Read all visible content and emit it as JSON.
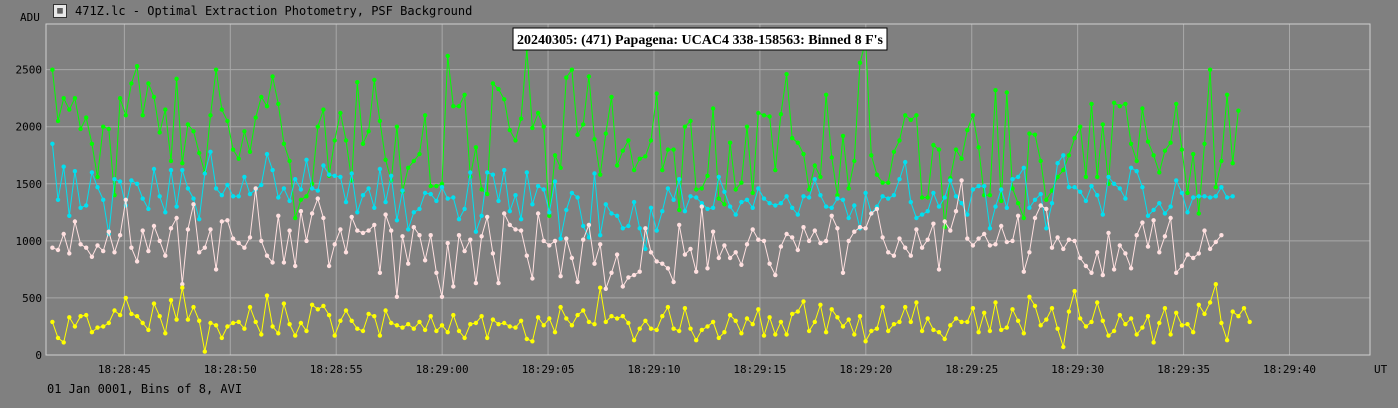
{
  "window": {
    "title": "471Z.lc - Optimal Extraction Photometry, PSF Background",
    "icon": "app-window-icon"
  },
  "footer": {
    "text": "01 Jan 0001, Bins of 8, AVI"
  },
  "chart_data": {
    "type": "line",
    "title": "20240305: (471) Papagena: UCAC4 338-158563: Binned 8 F's",
    "ylabel": "ADU",
    "xlabel": "UT",
    "ylim": [
      0,
      2900
    ],
    "yticks": [
      0,
      500,
      1000,
      1500,
      2000,
      2500
    ],
    "xlim_seconds": [
      41.3,
      103.8
    ],
    "xticks": [
      {
        "t": 45,
        "label": "18:28:45"
      },
      {
        "t": 50,
        "label": "18:28:50"
      },
      {
        "t": 55,
        "label": "18:28:55"
      },
      {
        "t": 60,
        "label": "18:29:00"
      },
      {
        "t": 65,
        "label": "18:29:05"
      },
      {
        "t": 70,
        "label": "18:29:10"
      },
      {
        "t": 75,
        "label": "18:29:15"
      },
      {
        "t": 80,
        "label": "18:29:20"
      },
      {
        "t": 85,
        "label": "18:29:25"
      },
      {
        "t": 90,
        "label": "18:29:30"
      },
      {
        "t": 95,
        "label": "18:29:35"
      },
      {
        "t": 100,
        "label": "18:29:40"
      }
    ],
    "grid": true,
    "x_start_seconds": 41.6,
    "x_step_seconds": 0.2666,
    "colors": {
      "background": "#808080",
      "grid": "#a8a8a8",
      "green": "#00ff00",
      "cyan": "#00e0f0",
      "pink": "#ffe0e0",
      "yellow": "#ffff00"
    },
    "series": [
      {
        "color": "#00ff00",
        "values": [
          2500,
          2050,
          2250,
          2150,
          2250,
          1980,
          2080,
          1850,
          1560,
          2000,
          1980,
          1400,
          2250,
          2100,
          2380,
          2530,
          2100,
          2380,
          2260,
          1950,
          2150,
          1700,
          2420,
          1680,
          2020,
          1960,
          1770,
          1600,
          2100,
          2500,
          2150,
          2050,
          1800,
          1720,
          1960,
          1780,
          2080,
          2260,
          2180,
          2440,
          2200,
          1850,
          1700,
          1200,
          1360,
          1390,
          1500,
          2000,
          2150,
          1570,
          1880,
          2120,
          1880,
          1530,
          2390,
          1850,
          1960,
          2410,
          2050,
          1710,
          1530,
          2000,
          1430,
          1640,
          1700,
          1760,
          2100,
          1480,
          1480,
          1500,
          2620,
          2180,
          2180,
          2280,
          1560,
          1820,
          1450,
          1410,
          2380,
          2330,
          2240,
          1970,
          1880,
          2070,
          2680,
          1990,
          2120,
          2000,
          1220,
          1750,
          1640,
          2430,
          2500,
          1930,
          2020,
          2440,
          1890,
          1580,
          1940,
          2260,
          1660,
          1790,
          1880,
          1620,
          1720,
          1740,
          1880,
          2290,
          1620,
          1800,
          1800,
          1270,
          2000,
          2050,
          1450,
          1460,
          1570,
          2160,
          1370,
          1320,
          1860,
          1450,
          1510,
          2000,
          1420,
          2120,
          2100,
          2090,
          1620,
          2110,
          2460,
          1900,
          1860,
          1760,
          1450,
          1660,
          1560,
          2280,
          1730,
          1400,
          1920,
          1460,
          1700,
          2560,
          2750,
          1750,
          1580,
          1510,
          1510,
          1780,
          1880,
          2100,
          2060,
          2100,
          1380,
          1380,
          1840,
          1800,
          1120,
          1550,
          1800,
          1720,
          1970,
          2100,
          1820,
          1400,
          1400,
          2320,
          1350,
          2300,
          1460,
          1330,
          1200,
          1940,
          1930,
          1700,
          1360,
          1440,
          1560,
          1620,
          1750,
          1900,
          2000,
          1560,
          2200,
          1560,
          2020,
          1500,
          2210,
          2180,
          2200,
          1850,
          1700,
          2160,
          1870,
          1750,
          1600,
          1790,
          1860,
          2200,
          1800,
          1420,
          1760,
          1240,
          1850,
          2500,
          1470,
          1700,
          2280,
          1680,
          2140
        ]
      },
      {
        "color": "#00e0f0",
        "values": [
          1850,
          1360,
          1650,
          1220,
          1610,
          1290,
          1310,
          1600,
          1470,
          1360,
          1060,
          1540,
          1520,
          1310,
          1530,
          1500,
          1370,
          1280,
          1630,
          1390,
          1250,
          1620,
          1300,
          1620,
          1460,
          1370,
          1190,
          1590,
          1780,
          1460,
          1400,
          1490,
          1390,
          1390,
          1560,
          1410,
          1450,
          1490,
          1760,
          1620,
          1380,
          1460,
          1350,
          1540,
          1450,
          1710,
          1460,
          1440,
          1660,
          1580,
          1570,
          1560,
          1340,
          1590,
          1250,
          1400,
          1460,
          1290,
          1630,
          1340,
          1570,
          1180,
          1440,
          1100,
          1250,
          1280,
          1420,
          1410,
          1350,
          1470,
          1370,
          1380,
          1190,
          1280,
          1600,
          1080,
          1220,
          1600,
          1580,
          1350,
          1620,
          1260,
          1400,
          1190,
          1600,
          1320,
          1480,
          1450,
          1250,
          1520,
          1020,
          1270,
          1420,
          1380,
          1130,
          1030,
          1590,
          1050,
          1320,
          1240,
          1220,
          1110,
          1130,
          1340,
          1110,
          930,
          1290,
          1090,
          1260,
          1460,
          1360,
          1540,
          1260,
          1390,
          1380,
          1330,
          1280,
          1290,
          1560,
          1430,
          1300,
          1230,
          1340,
          1360,
          1290,
          1460,
          1370,
          1330,
          1310,
          1330,
          1390,
          1290,
          1230,
          1390,
          1380,
          1540,
          1400,
          1300,
          1290,
          1370,
          1360,
          1200,
          1310,
          1110,
          1420,
          1240,
          1300,
          1390,
          1370,
          1400,
          1540,
          1690,
          1340,
          1200,
          1230,
          1260,
          1420,
          1300,
          1380,
          1530,
          1390,
          1330,
          1230,
          1450,
          1480,
          1480,
          1110,
          1300,
          1450,
          1290,
          1540,
          1560,
          1640,
          1290,
          1360,
          1410,
          1110,
          1330,
          1680,
          1750,
          1470,
          1470,
          1430,
          1350,
          1480,
          1400,
          1230,
          1560,
          1500,
          1460,
          1370,
          1640,
          1610,
          1470,
          1220,
          1270,
          1330,
          1240,
          1300,
          1530,
          1420,
          1250,
          1380,
          1390,
          1390,
          1380,
          1390,
          1470,
          1380,
          1390
        ]
      },
      {
        "color": "#ffe0e0",
        "values": [
          940,
          920,
          1060,
          890,
          1170,
          970,
          940,
          860,
          960,
          910,
          1080,
          900,
          1050,
          1360,
          940,
          820,
          1090,
          910,
          1130,
          1000,
          870,
          1110,
          1200,
          620,
          1100,
          1320,
          900,
          940,
          1100,
          750,
          1170,
          1180,
          1020,
          980,
          940,
          1030,
          1460,
          1000,
          870,
          810,
          1220,
          810,
          1090,
          780,
          1260,
          1000,
          1240,
          1370,
          1200,
          780,
          970,
          1100,
          900,
          1210,
          1090,
          1070,
          1090,
          1140,
          720,
          1230,
          1090,
          510,
          1040,
          800,
          1120,
          1050,
          830,
          1050,
          720,
          510,
          980,
          600,
          1050,
          910,
          1010,
          630,
          1040,
          1210,
          890,
          630,
          1240,
          1140,
          1100,
          1090,
          870,
          670,
          1240,
          1000,
          960,
          1000,
          690,
          1020,
          850,
          640,
          1010,
          1140,
          800,
          970,
          580,
          720,
          880,
          600,
          680,
          700,
          730,
          1110,
          900,
          820,
          800,
          760,
          640,
          1140,
          880,
          930,
          730,
          1300,
          760,
          1080,
          850,
          960,
          850,
          900,
          790,
          970,
          1100,
          1010,
          1000,
          800,
          700,
          950,
          1060,
          1030,
          920,
          1120,
          1000,
          1090,
          980,
          1000,
          1220,
          1110,
          720,
          1000,
          1080,
          1120,
          1110,
          1240,
          1280,
          1030,
          900,
          870,
          1020,
          940,
          870,
          1100,
          940,
          1010,
          1150,
          750,
          1170,
          1090,
          1260,
          1530,
          1020,
          960,
          1020,
          1060,
          960,
          970,
          1130,
          990,
          1000,
          1220,
          730,
          900,
          1200,
          1310,
          1280,
          940,
          1030,
          930,
          1010,
          1000,
          850,
          780,
          720,
          900,
          700,
          1070,
          750,
          960,
          890,
          760,
          1050,
          1160,
          950,
          1180,
          900,
          1040,
          1200,
          720,
          780,
          880,
          850,
          890,
          1090,
          930,
          990,
          1050
        ]
      },
      {
        "color": "#ffff00",
        "values": [
          290,
          150,
          110,
          330,
          250,
          340,
          350,
          200,
          240,
          250,
          280,
          390,
          350,
          500,
          360,
          340,
          280,
          220,
          450,
          340,
          190,
          480,
          310,
          590,
          310,
          420,
          300,
          30,
          280,
          260,
          150,
          250,
          280,
          290,
          230,
          420,
          290,
          180,
          520,
          250,
          190,
          450,
          270,
          170,
          280,
          210,
          440,
          400,
          430,
          350,
          170,
          300,
          390,
          300,
          230,
          210,
          360,
          340,
          170,
          390,
          280,
          260,
          240,
          270,
          230,
          290,
          220,
          340,
          210,
          260,
          200,
          350,
          210,
          150,
          270,
          280,
          340,
          150,
          310,
          270,
          280,
          250,
          240,
          300,
          140,
          120,
          330,
          260,
          320,
          200,
          420,
          320,
          260,
          350,
          390,
          290,
          270,
          590,
          290,
          340,
          320,
          340,
          280,
          130,
          230,
          300,
          230,
          220,
          340,
          420,
          230,
          210,
          410,
          230,
          130,
          220,
          250,
          290,
          150,
          200,
          350,
          300,
          190,
          320,
          270,
          400,
          170,
          330,
          180,
          290,
          180,
          360,
          380,
          470,
          210,
          290,
          440,
          200,
          400,
          330,
          250,
          310,
          180,
          340,
          120,
          210,
          230,
          420,
          210,
          270,
          290,
          420,
          290,
          460,
          210,
          320,
          220,
          200,
          140,
          260,
          320,
          290,
          290,
          410,
          200,
          370,
          210,
          460,
          220,
          240,
          400,
          300,
          190,
          510,
          430,
          260,
          310,
          410,
          230,
          70,
          380,
          560,
          320,
          250,
          290,
          460,
          300,
          170,
          210,
          350,
          270,
          320,
          180,
          240,
          340,
          110,
          280,
          410,
          180,
          370,
          260,
          270,
          200,
          440,
          360,
          460,
          620,
          280,
          130,
          380,
          340,
          410,
          290
        ]
      }
    ]
  }
}
